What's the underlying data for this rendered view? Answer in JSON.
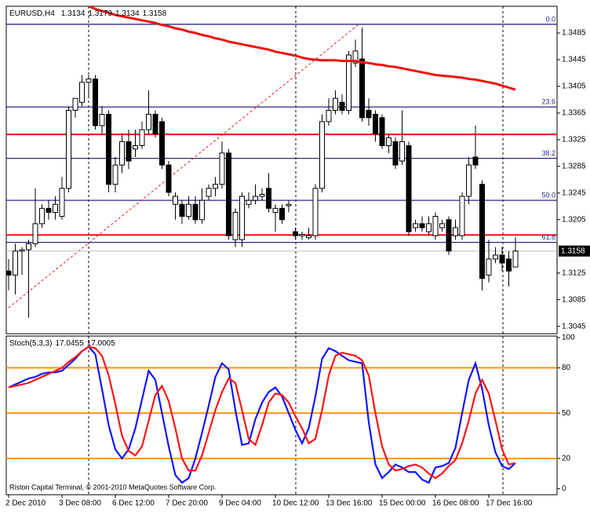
{
  "chart_data": [
    {
      "type": "candlestick",
      "symbol": "EURUSD,H4",
      "categories": [
        "2 Dec 2010",
        null,
        null,
        null,
        null,
        null,
        null,
        null,
        "3 Dec 08:00",
        null,
        null,
        null,
        null,
        null,
        null,
        null,
        "6 Dec 12:00",
        null,
        null,
        null,
        null,
        null,
        null,
        null,
        "7 Dec 20:00",
        null,
        null,
        null,
        null,
        null,
        null,
        null,
        "9 Dec 04:00",
        null,
        null,
        null,
        null,
        null,
        null,
        null,
        "10 Dec 12:00",
        null,
        null,
        null,
        null,
        null,
        null,
        null,
        "13 Dec 16:00",
        null,
        null,
        null,
        null,
        null,
        null,
        null,
        "15 Dec 00:00",
        null,
        null,
        null,
        null,
        null,
        null,
        null,
        "16 Dec 08:00",
        null,
        null,
        null,
        null,
        null,
        null,
        null,
        "17 Dec 16:00",
        null,
        null,
        null,
        null
      ],
      "candles": [
        [
          1.3128,
          1.3146,
          1.3099,
          1.3122
        ],
        [
          1.3122,
          1.3169,
          1.3093,
          1.3158
        ],
        [
          1.3158,
          1.3164,
          1.3122,
          1.316
        ],
        [
          1.316,
          1.3175,
          1.3058,
          1.3169
        ],
        [
          1.3169,
          1.3252,
          1.3164,
          1.3199
        ],
        [
          1.3199,
          1.3228,
          1.3193,
          1.3222
        ],
        [
          1.3222,
          1.3234,
          1.3205,
          1.3216
        ],
        [
          1.3216,
          1.324,
          1.3205,
          1.3228
        ],
        [
          1.321,
          1.3269,
          1.3205,
          1.3252
        ],
        [
          1.3252,
          1.3375,
          1.3246,
          1.3369
        ],
        [
          1.3369,
          1.3387,
          1.3358,
          1.3387
        ],
        [
          1.3381,
          1.3422,
          1.3375,
          1.3411
        ],
        [
          1.3411,
          1.3422,
          1.3387,
          1.3416
        ],
        [
          1.3416,
          1.3422,
          1.334,
          1.3346
        ],
        [
          1.3346,
          1.3375,
          1.3334,
          1.3363
        ],
        [
          1.3363,
          1.3369,
          1.3246,
          1.3258
        ],
        [
          1.3258,
          1.3299,
          1.3246,
          1.3287
        ],
        [
          1.3287,
          1.3334,
          1.3275,
          1.3322
        ],
        [
          1.3322,
          1.334,
          1.3281,
          1.3293
        ],
        [
          1.3311,
          1.334,
          1.3299,
          1.3316
        ],
        [
          1.3316,
          1.3352,
          1.3311,
          1.334
        ],
        [
          1.334,
          1.3399,
          1.3334,
          1.3363
        ],
        [
          1.3363,
          1.3369,
          1.3328,
          1.3334
        ],
        [
          1.3352,
          1.3358,
          1.3281,
          1.3287
        ],
        [
          1.3287,
          1.3293,
          1.324,
          1.3246
        ],
        [
          1.3228,
          1.3246,
          1.3205,
          1.324
        ],
        [
          1.3228,
          1.3234,
          1.3199,
          1.321
        ],
        [
          1.321,
          1.324,
          1.3205,
          1.3228
        ],
        [
          1.3228,
          1.324,
          1.3199,
          1.3205
        ],
        [
          1.3205,
          1.3252,
          1.3199,
          1.3234
        ],
        [
          1.324,
          1.3258,
          1.3234,
          1.3252
        ],
        [
          1.3252,
          1.3269,
          1.324,
          1.3258
        ],
        [
          1.3258,
          1.3322,
          1.3252,
          1.3305
        ],
        [
          1.3305,
          1.3311,
          1.3175,
          1.3181
        ],
        [
          1.3175,
          1.3222,
          1.3164,
          1.3216
        ],
        [
          1.3175,
          1.3246,
          1.3164,
          1.324
        ],
        [
          1.3228,
          1.3246,
          1.3222,
          1.3234
        ],
        [
          1.3234,
          1.3258,
          1.3228,
          1.324
        ],
        [
          1.324,
          1.3252,
          1.3234,
          1.3243
        ],
        [
          1.3252,
          1.3275,
          1.3216,
          1.3222
        ],
        [
          1.3216,
          1.3228,
          1.3187,
          1.3222
        ],
        [
          1.3222,
          1.3228,
          1.3199,
          1.3205
        ],
        [
          1.3226,
          1.3234,
          1.3216,
          1.3228
        ],
        [
          1.3187,
          1.3193,
          1.3175,
          1.3181
        ],
        [
          1.3181,
          1.3187,
          1.3175,
          1.3183
        ],
        [
          1.3178,
          1.3193,
          1.3175,
          1.3181
        ],
        [
          1.3181,
          1.3258,
          1.3175,
          1.3252
        ],
        [
          1.3252,
          1.3363,
          1.3246,
          1.3352
        ],
        [
          1.3352,
          1.3387,
          1.3346,
          1.3369
        ],
        [
          1.3369,
          1.3399,
          1.3363,
          1.3387
        ],
        [
          1.3381,
          1.3393,
          1.3363,
          1.3369
        ],
        [
          1.3369,
          1.3458,
          1.3363,
          1.3452
        ],
        [
          1.344,
          1.3475,
          1.3434,
          1.3458
        ],
        [
          1.3446,
          1.3493,
          1.3352,
          1.3358
        ],
        [
          1.3369,
          1.3387,
          1.3346,
          1.3358
        ],
        [
          1.3363,
          1.3369,
          1.3322,
          1.3334
        ],
        [
          1.3358,
          1.3363,
          1.3311,
          1.3316
        ],
        [
          1.3316,
          1.3334,
          1.3305,
          1.3328
        ],
        [
          1.3322,
          1.3328,
          1.3281,
          1.3287
        ],
        [
          1.3293,
          1.3369,
          1.3287,
          1.3322
        ],
        [
          1.3316,
          1.3322,
          1.3181,
          1.3187
        ],
        [
          1.3193,
          1.3205,
          1.3187,
          1.3199
        ],
        [
          1.3199,
          1.321,
          1.3187,
          1.3193
        ],
        [
          1.3187,
          1.321,
          1.3181,
          1.3199
        ],
        [
          1.3181,
          1.3216,
          1.3175,
          1.321
        ],
        [
          1.3193,
          1.3205,
          1.3187,
          1.3199
        ],
        [
          1.3205,
          1.321,
          1.3152,
          1.3158
        ],
        [
          1.3181,
          1.3205,
          1.3175,
          1.3193
        ],
        [
          1.3181,
          1.3246,
          1.3175,
          1.324
        ],
        [
          1.324,
          1.3299,
          1.3228,
          1.3287
        ],
        [
          1.3299,
          1.3346,
          1.3281,
          1.3287
        ],
        [
          1.3258,
          1.3264,
          1.3099,
          1.3117
        ],
        [
          1.3122,
          1.3175,
          1.3111,
          1.3146
        ],
        [
          1.3146,
          1.3164,
          1.314,
          1.3152
        ],
        [
          1.3152,
          1.3164,
          1.3128,
          1.314
        ],
        [
          1.3146,
          1.3158,
          1.3105,
          1.3128
        ],
        [
          1.3134,
          1.3179,
          1.3134,
          1.3158
        ]
      ],
      "up_color": "#ffffff",
      "down_color": "#000000",
      "moving_average": {
        "color": "#ee1111",
        "values": [
          null,
          null,
          null,
          null,
          null,
          null,
          null,
          null,
          null,
          null,
          null,
          null,
          1.3525,
          1.3521,
          1.3518,
          1.3515,
          1.3512,
          1.351,
          1.3508,
          1.3506,
          1.3504,
          1.3502,
          1.35,
          1.3497,
          1.3495,
          1.3492,
          1.349,
          1.3487,
          1.3485,
          1.3482,
          1.348,
          1.3477,
          1.3475,
          1.3472,
          1.347,
          1.3468,
          1.3466,
          1.3464,
          1.3462,
          1.346,
          1.3457,
          1.3455,
          1.3453,
          1.3451,
          1.3448,
          1.3446,
          1.3445,
          1.3444,
          1.3444,
          1.3444,
          1.3443,
          1.3443,
          1.3443,
          1.3441,
          1.344,
          1.3438,
          1.3437,
          1.3435,
          1.3434,
          1.3432,
          1.343,
          1.3428,
          1.3426,
          1.3424,
          1.3422,
          1.3421,
          1.342,
          1.3419,
          1.3418,
          1.3416,
          1.3415,
          1.3413,
          1.3411,
          1.3409,
          1.3406,
          1.3403,
          1.34
        ]
      },
      "fibo_color": "#2a2a8a",
      "fibo_levels": [
        {
          "label": "0.0",
          "price": 1.3498
        },
        {
          "label": "23.6",
          "price": 1.3374
        },
        {
          "label": "38.2",
          "price": 1.3297
        },
        {
          "label": "50.0",
          "price": 1.3234
        },
        {
          "label": "61.8",
          "price": 1.3171
        }
      ],
      "hlines_color": "#ee1111",
      "hlines": [
        1.3333,
        1.3182
      ],
      "trendline": {
        "color": "#ee1111",
        "points": [
          [
            0,
            1.3073
          ],
          [
            52.5,
            1.3498
          ]
        ]
      },
      "ylim": [
        1.3034,
        1.3525
      ],
      "yticks": [
        1.3485,
        1.3445,
        1.3405,
        1.3365,
        1.3325,
        1.3285,
        1.3245,
        1.3205,
        1.3125,
        1.3085,
        1.3045
      ]
    },
    {
      "type": "line",
      "title": "Stoch(5,3,3)",
      "level_color": "#ff9900",
      "levels": [
        20,
        50,
        80
      ],
      "ylim": [
        -4,
        101
      ],
      "yticks": [
        0,
        20,
        50,
        80,
        100
      ],
      "series": [
        {
          "name": "main",
          "color": "#1414ff",
          "values": [
            67,
            69,
            71,
            73,
            74,
            76,
            77,
            77,
            78,
            82,
            86,
            91,
            94,
            89,
            66,
            42,
            26,
            20,
            26,
            40,
            59,
            78,
            72,
            50,
            28,
            9,
            4,
            7,
            20,
            37,
            55,
            74,
            83,
            79,
            52,
            29,
            30,
            46,
            57,
            64,
            67,
            61,
            50,
            39,
            30,
            40,
            61,
            86,
            93,
            91,
            88,
            85,
            84,
            83,
            44,
            16,
            7,
            11,
            16,
            14,
            11,
            11,
            6,
            4,
            14,
            15,
            17,
            27,
            50,
            72,
            83,
            66,
            42,
            24,
            15,
            13,
            17.0455
          ]
        },
        {
          "name": "signal",
          "color": "#ff1414",
          "values": [
            67,
            68,
            69,
            70,
            72,
            74,
            76,
            78,
            80,
            84,
            87,
            91,
            94,
            93,
            88,
            75,
            56,
            35,
            25,
            22,
            28,
            45,
            62,
            68,
            58,
            40,
            20,
            12,
            12,
            22,
            37,
            52,
            64,
            73,
            70,
            52,
            33,
            29,
            42,
            57,
            63,
            62,
            57,
            48,
            40,
            30,
            33,
            52,
            75,
            88,
            90,
            89,
            88,
            85,
            75,
            50,
            28,
            16,
            12,
            13,
            15,
            16,
            14,
            10,
            7,
            10,
            15,
            19,
            30,
            45,
            63,
            72,
            63,
            45,
            26,
            16,
            17.0005
          ]
        }
      ],
      "footer": "Riston Capital Terminal, © 2001-2010 MetaQuotes Software Corp."
    }
  ]
}
